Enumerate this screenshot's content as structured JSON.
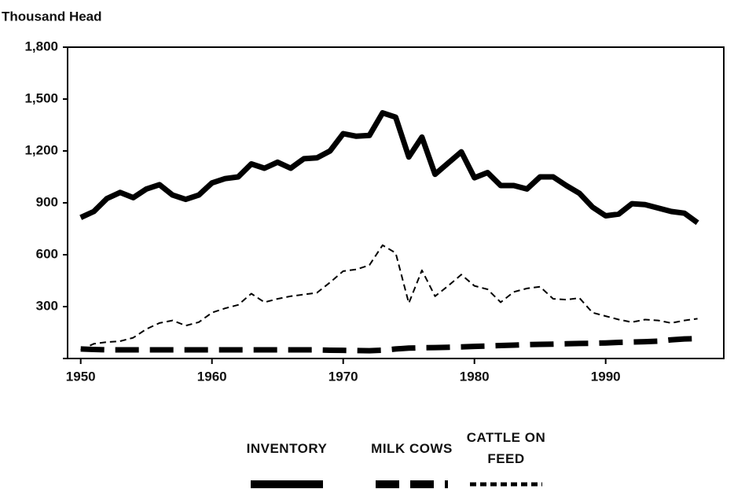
{
  "chart_data": {
    "type": "line",
    "y_label": "Thousand Head",
    "x": [
      1950,
      1951,
      1952,
      1953,
      1954,
      1955,
      1956,
      1957,
      1958,
      1959,
      1960,
      1961,
      1962,
      1963,
      1964,
      1965,
      1966,
      1967,
      1968,
      1969,
      1970,
      1971,
      1972,
      1973,
      1974,
      1975,
      1976,
      1977,
      1978,
      1979,
      1980,
      1981,
      1982,
      1983,
      1984,
      1985,
      1986,
      1987,
      1988,
      1989,
      1990,
      1991,
      1992,
      1993,
      1994,
      1995,
      1996,
      1997
    ],
    "series": [
      {
        "name": "INVENTORY",
        "color": "#000000",
        "dash": "solid",
        "values": [
          815,
          850,
          925,
          960,
          930,
          980,
          1005,
          945,
          920,
          945,
          1015,
          1040,
          1050,
          1125,
          1100,
          1135,
          1100,
          1155,
          1160,
          1200,
          1300,
          1285,
          1290,
          1420,
          1395,
          1165,
          1280,
          1065,
          1130,
          1195,
          1045,
          1075,
          1000,
          1000,
          980,
          1050,
          1050,
          1000,
          955,
          875,
          825,
          835,
          895,
          890,
          870,
          850,
          840,
          785
        ]
      },
      {
        "name": "MILK COWS",
        "color": "#000000",
        "dash": "long-dash",
        "values": [
          55,
          52,
          50,
          50,
          50,
          50,
          50,
          50,
          50,
          50,
          50,
          50,
          50,
          50,
          50,
          50,
          50,
          50,
          50,
          48,
          47,
          46,
          45,
          48,
          55,
          60,
          62,
          63,
          65,
          67,
          70,
          72,
          75,
          77,
          80,
          82,
          83,
          85,
          87,
          88,
          90,
          93,
          95,
          97,
          100,
          108,
          113,
          115
        ]
      },
      {
        "name": "CATTLE ON FEED",
        "color": "#000000",
        "dash": "short-dash",
        "values": [
          50,
          85,
          95,
          100,
          120,
          170,
          205,
          220,
          190,
          210,
          265,
          290,
          310,
          375,
          325,
          345,
          360,
          370,
          380,
          440,
          505,
          515,
          540,
          655,
          610,
          320,
          510,
          360,
          420,
          485,
          420,
          400,
          325,
          385,
          405,
          415,
          345,
          340,
          350,
          265,
          245,
          225,
          210,
          225,
          220,
          205,
          220,
          230
        ]
      }
    ],
    "xlim": [
      1949,
      1999
    ],
    "xticks": [
      1950,
      1960,
      1970,
      1980,
      1990
    ],
    "ylim": [
      0,
      1800
    ],
    "yticks": [
      0,
      {
        "value": 300,
        "label": "300"
      },
      {
        "value": 600,
        "label": "600"
      },
      {
        "value": 900,
        "label": "900"
      },
      {
        "value": 1200,
        "label": "1,200"
      },
      {
        "value": 1500,
        "label": "1,500"
      },
      {
        "value": 1800,
        "label": "1,800"
      }
    ],
    "legend": "bottom"
  }
}
